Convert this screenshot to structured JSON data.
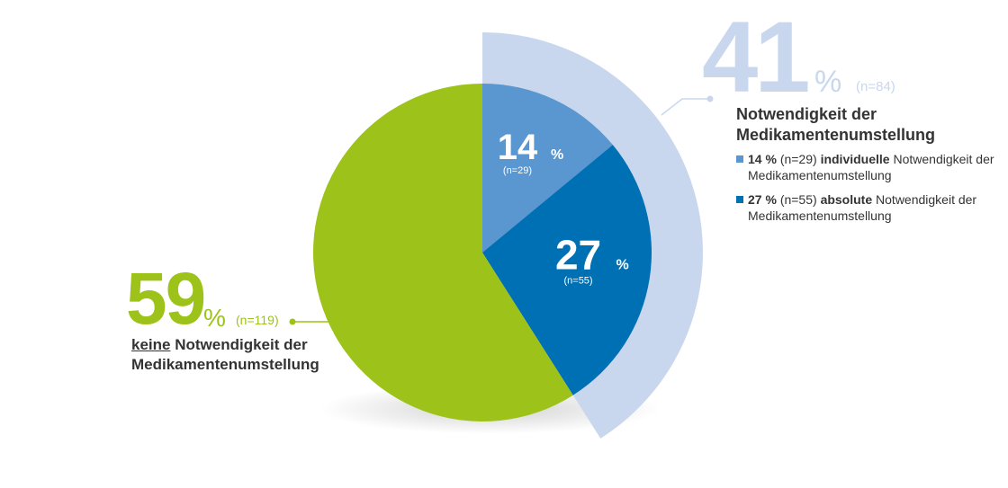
{
  "chart_data": {
    "type": "pie",
    "slices": [
      {
        "key": "individual",
        "value": 14,
        "n_label": "(n=29)",
        "color": "#5a96cf"
      },
      {
        "key": "absolute",
        "value": 27,
        "n_label": "(n=55)",
        "color": "#0070b4"
      },
      {
        "key": "none",
        "value": 59,
        "n_label": "(n=119)",
        "color": "#9dc219"
      }
    ],
    "outer_ring": {
      "value": 41,
      "color": "#c9d7ee"
    },
    "percent_sign": "%",
    "group_41": {
      "value": "41",
      "percent": "%",
      "n_label": "(n=84)",
      "title_line1": "Notwendigkeit der",
      "title_line2": "Medikamentenumstellung",
      "legend": [
        {
          "color": "#5a96cf",
          "pct": "14 %",
          "n": "(n=29)",
          "bold": "individuelle",
          "rest": "Notwendigkeit der Medikamentenumstellung"
        },
        {
          "color": "#0070b4",
          "pct": "27 %",
          "n": "(n=55)",
          "bold": "absolute",
          "rest": "Notwendigkeit der Medikamentenumstellung"
        }
      ]
    },
    "group_59": {
      "value": "59",
      "percent": "%",
      "n_label": "(n=119)",
      "title_underlined": "keine",
      "title_rest_line1": "Notwendigkeit der",
      "title_line2": "Medikamentenumstellung"
    }
  }
}
